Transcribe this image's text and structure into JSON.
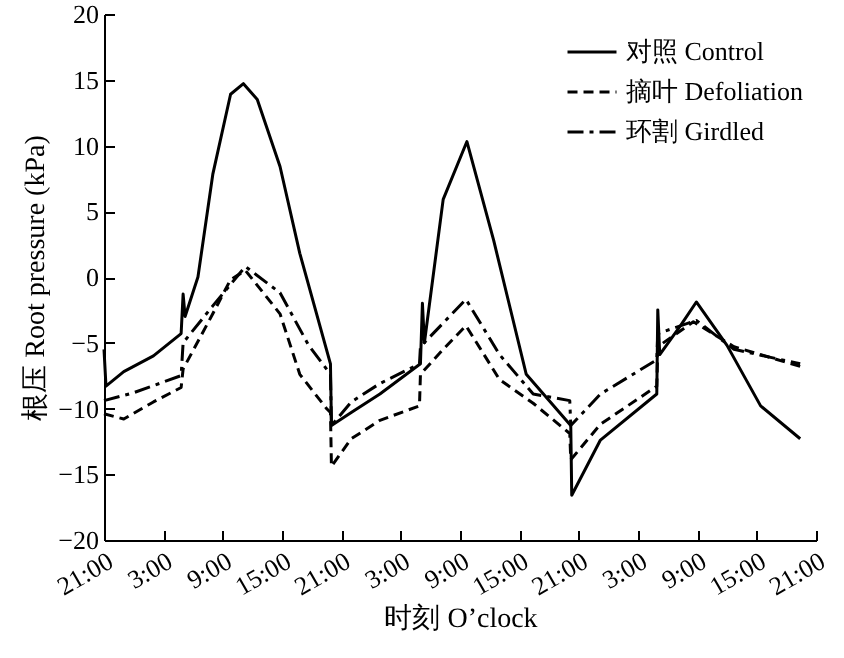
{
  "chart_data": {
    "type": "line",
    "xlabel": "时刻 O’clock",
    "ylabel": "根压 Root pressure (kPa)",
    "xlim": [
      "2000-01-01T21:00",
      "2000-01-04T21:00"
    ],
    "ylim": [
      -20,
      20
    ],
    "yticks": [
      -20,
      -15,
      -10,
      -5,
      0,
      5,
      10,
      15,
      20
    ],
    "xticks": [
      {
        "value": "2000-01-01T21:00",
        "label": "21:00"
      },
      {
        "value": "2000-01-02T03:00",
        "label": "3:00"
      },
      {
        "value": "2000-01-02T09:00",
        "label": "9:00"
      },
      {
        "value": "2000-01-02T15:00",
        "label": "15:00"
      },
      {
        "value": "2000-01-02T21:00",
        "label": "21:00"
      },
      {
        "value": "2000-01-03T03:00",
        "label": "3:00"
      },
      {
        "value": "2000-01-03T09:00",
        "label": "9:00"
      },
      {
        "value": "2000-01-03T15:00",
        "label": "15:00"
      },
      {
        "value": "2000-01-03T21:00",
        "label": "21:00"
      },
      {
        "value": "2000-01-04T03:00",
        "label": "3:00"
      },
      {
        "value": "2000-01-04T09:00",
        "label": "9:00"
      },
      {
        "value": "2000-01-04T15:00",
        "label": "15:00"
      },
      {
        "value": "2000-01-04T21:00",
        "label": "21:00"
      }
    ],
    "legend": "top right",
    "grid": false,
    "marker": "none",
    "series": [
      {
        "name": "对照 Control",
        "color": "#000000",
        "line_style": "solid",
        "x": [
          "2000-01-01T21:00",
          "2000-01-01T21:12",
          "2000-01-01T23:00",
          "2000-01-02T02:00",
          "2000-01-02T04:48",
          "2000-01-02T05:00",
          "2000-01-02T05:12",
          "2000-01-02T06:30",
          "2000-01-02T08:00",
          "2000-01-02T09:48",
          "2000-01-02T11:06",
          "2000-01-02T12:30",
          "2000-01-02T14:48",
          "2000-01-02T16:48",
          "2000-01-02T19:54",
          "2000-01-02T20:00",
          "2000-01-02T22:00",
          "2000-01-03T00:54",
          "2000-01-03T05:00",
          "2000-01-03T05:12",
          "2000-01-03T05:24",
          "2000-01-03T07:18",
          "2000-01-03T09:42",
          "2000-01-03T12:24",
          "2000-01-03T15:42",
          "2000-01-03T20:12",
          "2000-01-03T20:18",
          "2000-01-03T23:12",
          "2000-01-04T04:54",
          "2000-01-04T05:00",
          "2000-01-04T05:12",
          "2000-01-04T07:18",
          "2000-01-04T08:54",
          "2000-01-04T12:00",
          "2000-01-04T15:24",
          "2000-01-04T19:24"
        ],
        "values": [
          -5.5,
          -8.3,
          -7.2,
          -6,
          -4.3,
          -1.3,
          -3,
          0,
          7.8,
          13.9,
          14.7,
          13.5,
          8.4,
          1.8,
          -6.6,
          -11.3,
          -10.3,
          -8.9,
          -6.6,
          -2,
          -5,
          5.9,
          10.3,
          2.8,
          -7.4,
          -11.3,
          -16.6,
          -12.4,
          -8.9,
          -2.5,
          -5.9,
          -3.7,
          -1.9,
          -5.2,
          -9.8,
          -12.3
        ]
      },
      {
        "name": "摘叶 Defoliation",
        "color": "#000000",
        "line_style": "dashed",
        "x": [
          "2000-01-01T21:00",
          "2000-01-01T23:00",
          "2000-01-02T02:00",
          "2000-01-02T04:48",
          "2000-01-02T05:00",
          "2000-01-02T08:00",
          "2000-01-02T09:48",
          "2000-01-02T11:18",
          "2000-01-02T14:48",
          "2000-01-02T16:48",
          "2000-01-02T19:30",
          "2000-01-02T19:54",
          "2000-01-02T20:00",
          "2000-01-02T22:00",
          "2000-01-03T00:54",
          "2000-01-03T04:54",
          "2000-01-03T05:00",
          "2000-01-03T07:18",
          "2000-01-03T09:36",
          "2000-01-03T13:00",
          "2000-01-03T16:24",
          "2000-01-03T20:06",
          "2000-01-03T20:12",
          "2000-01-03T23:12",
          "2000-01-04T04:54",
          "2000-01-04T05:00",
          "2000-01-04T08:36",
          "2000-01-04T12:42",
          "2000-01-04T19:24"
        ],
        "values": [
          -10.4,
          -10.8,
          -9.5,
          -8.4,
          -7,
          -2.8,
          -0.2,
          0.5,
          -2.8,
          -7.4,
          -10,
          -10.3,
          -14.4,
          -12.3,
          -10.9,
          -9.8,
          -7.4,
          -5.5,
          -3.7,
          -7.8,
          -9.6,
          -11.9,
          -13.9,
          -11.2,
          -8.3,
          -5.3,
          -3.4,
          -5.3,
          -6.8
        ]
      },
      {
        "name": "环割 Girdled",
        "color": "#000000",
        "line_style": "dashdot",
        "x": [
          "2000-01-01T21:00",
          "2000-01-02T00:00",
          "2000-01-02T04:48",
          "2000-01-02T05:00",
          "2000-01-02T08:00",
          "2000-01-02T11:18",
          "2000-01-02T14:48",
          "2000-01-02T17:42",
          "2000-01-02T19:54",
          "2000-01-02T20:00",
          "2000-01-02T22:00",
          "2000-01-03T00:54",
          "2000-01-03T04:54",
          "2000-01-03T05:00",
          "2000-01-03T09:36",
          "2000-01-03T13:00",
          "2000-01-03T16:24",
          "2000-01-03T20:06",
          "2000-01-03T20:12",
          "2000-01-03T23:12",
          "2000-01-04T04:54",
          "2000-01-04T05:00",
          "2000-01-04T08:54",
          "2000-01-04T12:42",
          "2000-01-04T19:24"
        ],
        "values": [
          -9.4,
          -8.8,
          -7.5,
          -5,
          -2.2,
          0.8,
          -1.2,
          -5.2,
          -7.4,
          -11.3,
          -9.5,
          -8.1,
          -6.6,
          -5.3,
          -1.7,
          -5.9,
          -8.9,
          -9.4,
          -11.3,
          -8.9,
          -6.3,
          -4.3,
          -3.3,
          -5.5,
          -6.6
        ]
      }
    ]
  }
}
